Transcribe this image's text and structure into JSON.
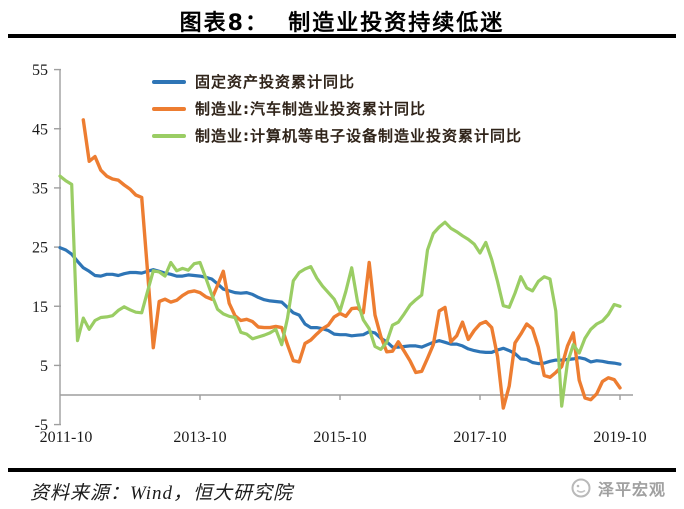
{
  "page": {
    "title": "图表8：  制造业投资持续低迷",
    "source_note": "资料来源：Wind，恒大研究院",
    "watermark": "泽平宏观"
  },
  "chart_data": {
    "type": "line",
    "title": "图表8：制造业投资持续低迷",
    "xlabel": "",
    "ylabel": "",
    "ylim": [
      -5,
      55
    ],
    "grid": false,
    "legend_position": "top-left-inside",
    "y_ticks": [
      55,
      45,
      35,
      25,
      15,
      5,
      -5
    ],
    "x_axis_ticks": [
      {
        "label": "2011-10",
        "month_index": 0
      },
      {
        "label": "2013-10",
        "month_index": 24
      },
      {
        "label": "2015-10",
        "month_index": 48
      },
      {
        "label": "2017-10",
        "month_index": 72
      },
      {
        "label": "2019-10",
        "month_index": 96
      }
    ],
    "x": [
      "2011-10",
      "2011-11",
      "2011-12",
      "2012-01",
      "2012-02",
      "2012-03",
      "2012-04",
      "2012-05",
      "2012-06",
      "2012-07",
      "2012-08",
      "2012-09",
      "2012-10",
      "2012-11",
      "2012-12",
      "2013-01",
      "2013-02",
      "2013-03",
      "2013-04",
      "2013-05",
      "2013-06",
      "2013-07",
      "2013-08",
      "2013-09",
      "2013-10",
      "2013-11",
      "2013-12",
      "2014-01",
      "2014-02",
      "2014-03",
      "2014-04",
      "2014-05",
      "2014-06",
      "2014-07",
      "2014-08",
      "2014-09",
      "2014-10",
      "2014-11",
      "2014-12",
      "2015-01",
      "2015-02",
      "2015-03",
      "2015-04",
      "2015-05",
      "2015-06",
      "2015-07",
      "2015-08",
      "2015-09",
      "2015-10",
      "2015-11",
      "2015-12",
      "2016-01",
      "2016-02",
      "2016-03",
      "2016-04",
      "2016-05",
      "2016-06",
      "2016-07",
      "2016-08",
      "2016-09",
      "2016-10",
      "2016-11",
      "2016-12",
      "2017-01",
      "2017-02",
      "2017-03",
      "2017-04",
      "2017-05",
      "2017-06",
      "2017-07",
      "2017-08",
      "2017-09",
      "2017-10",
      "2017-11",
      "2017-12",
      "2018-01",
      "2018-02",
      "2018-03",
      "2018-04",
      "2018-05",
      "2018-06",
      "2018-07",
      "2018-08",
      "2018-09",
      "2018-10",
      "2018-11",
      "2018-12",
      "2019-01",
      "2019-02",
      "2019-03",
      "2019-04",
      "2019-05",
      "2019-06",
      "2019-07",
      "2019-08",
      "2019-09",
      "2019-10"
    ],
    "series": [
      {
        "name": "固定资产投资累计同比",
        "color": "#2E75B6",
        "stroke_width": 3.2,
        "values": [
          24.9,
          24.5,
          23.8,
          22.6,
          21.5,
          20.9,
          20.2,
          20.1,
          20.4,
          20.4,
          20.2,
          20.5,
          20.7,
          20.7,
          20.6,
          20.9,
          21.2,
          20.9,
          20.6,
          20.4,
          20.1,
          20.1,
          20.3,
          20.2,
          20.1,
          19.9,
          19.6,
          18.8,
          17.9,
          17.6,
          17.3,
          17.2,
          17.3,
          17.0,
          16.5,
          16.1,
          15.9,
          15.8,
          15.7,
          14.8,
          13.9,
          13.5,
          12.0,
          11.4,
          11.4,
          11.2,
          10.9,
          10.3,
          10.2,
          10.2,
          10.0,
          10.1,
          10.2,
          10.7,
          10.5,
          9.6,
          9.0,
          8.1,
          8.1,
          8.2,
          8.3,
          8.3,
          8.1,
          8.5,
          8.9,
          9.2,
          8.9,
          8.6,
          8.6,
          8.3,
          7.8,
          7.5,
          7.3,
          7.2,
          7.2,
          7.6,
          7.9,
          7.5,
          7.0,
          6.1,
          6.0,
          5.5,
          5.3,
          5.4,
          5.7,
          5.9,
          5.9,
          6.0,
          6.1,
          6.3,
          6.1,
          5.6,
          5.8,
          5.7,
          5.5,
          5.4,
          5.2
        ]
      },
      {
        "name": "制造业:汽车制造业投资累计同比",
        "color": "#ED7D31",
        "stroke_width": 3.4,
        "values": [
          null,
          null,
          null,
          null,
          46.5,
          39.5,
          40.3,
          38.0,
          37.0,
          36.5,
          36.3,
          35.5,
          34.8,
          33.8,
          33.4,
          21.0,
          8.0,
          15.8,
          16.2,
          15.7,
          16.0,
          16.8,
          17.4,
          17.6,
          17.3,
          16.6,
          16.2,
          18.5,
          20.9,
          15.5,
          13.4,
          12.6,
          12.8,
          12.4,
          11.5,
          11.4,
          11.4,
          11.6,
          11.4,
          8.5,
          5.8,
          5.6,
          8.7,
          9.3,
          10.3,
          11.2,
          11.8,
          13.2,
          13.8,
          13.3,
          14.6,
          14.7,
          13.9,
          22.4,
          13.5,
          9.9,
          7.3,
          7.4,
          9.0,
          7.4,
          5.8,
          3.8,
          4.0,
          6.2,
          8.5,
          14.2,
          14.8,
          9.0,
          10.0,
          12.3,
          9.4,
          10.9,
          12.0,
          12.4,
          11.4,
          6.5,
          -2.2,
          1.5,
          8.8,
          10.3,
          12.0,
          11.2,
          8.1,
          3.3,
          3.0,
          3.8,
          4.8,
          8.3,
          10.5,
          2.5,
          -0.5,
          -0.8,
          0.2,
          2.3,
          2.9,
          2.6,
          1.2
        ]
      },
      {
        "name": "制造业:计算机等电子设备制造业投资累计同比",
        "color": "#9ACD64",
        "stroke_width": 3.2,
        "values": [
          37.0,
          36.2,
          35.6,
          9.2,
          13.0,
          11.1,
          12.6,
          13.1,
          13.2,
          13.4,
          14.3,
          14.9,
          14.4,
          14.0,
          13.9,
          17.5,
          21.0,
          20.8,
          20.1,
          22.4,
          21.0,
          21.4,
          21.1,
          22.2,
          22.4,
          19.8,
          17.0,
          14.5,
          13.7,
          13.3,
          13.1,
          10.6,
          10.3,
          9.5,
          9.8,
          10.1,
          10.5,
          11.1,
          8.5,
          13.0,
          19.3,
          20.7,
          21.3,
          21.7,
          19.8,
          18.4,
          17.3,
          16.2,
          14.2,
          17.5,
          21.5,
          15.8,
          12.7,
          11.2,
          8.2,
          7.7,
          8.9,
          11.8,
          12.3,
          13.7,
          15.2,
          16.1,
          16.9,
          24.5,
          27.3,
          28.4,
          29.2,
          28.2,
          27.6,
          26.9,
          26.3,
          25.5,
          24.0,
          25.8,
          22.9,
          19.2,
          15.1,
          14.8,
          17.2,
          20.0,
          18.1,
          17.6,
          19.2,
          20.0,
          19.6,
          14.2,
          -1.9,
          5.5,
          8.5,
          7.1,
          9.6,
          11.1,
          12.0,
          12.5,
          13.6,
          15.3,
          15.0
        ]
      }
    ],
    "axis_color": "#9e9e9e",
    "tick_label_color": "#1a1a1a"
  }
}
